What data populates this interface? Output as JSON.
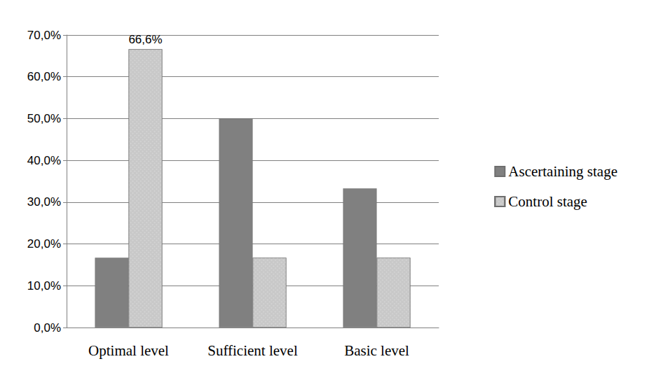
{
  "chart_data": {
    "type": "bar",
    "categories": [
      "Optimal level",
      "Sufficient level",
      "Basic level"
    ],
    "series": [
      {
        "name": "Ascertaining stage",
        "color": "#808080",
        "values": [
          16.7,
          50.0,
          33.3
        ]
      },
      {
        "name": "Control stage",
        "color": "#c8c8c8",
        "values": [
          66.6,
          16.7,
          16.7
        ],
        "value_labels": [
          "66,6%",
          null,
          null
        ]
      }
    ],
    "ylim": [
      0,
      70
    ],
    "yticks": [
      {
        "value": 0,
        "label": "0,0%"
      },
      {
        "value": 10,
        "label": "10,0%"
      },
      {
        "value": 20,
        "label": "20,0%"
      },
      {
        "value": 30,
        "label": "30,0%"
      },
      {
        "value": 40,
        "label": "40,0%"
      },
      {
        "value": 50,
        "label": "50,0%"
      },
      {
        "value": 60,
        "label": "60,0%"
      },
      {
        "value": 70,
        "label": "70,0%"
      }
    ],
    "grid": true,
    "legend": "right",
    "data_labels": true
  }
}
